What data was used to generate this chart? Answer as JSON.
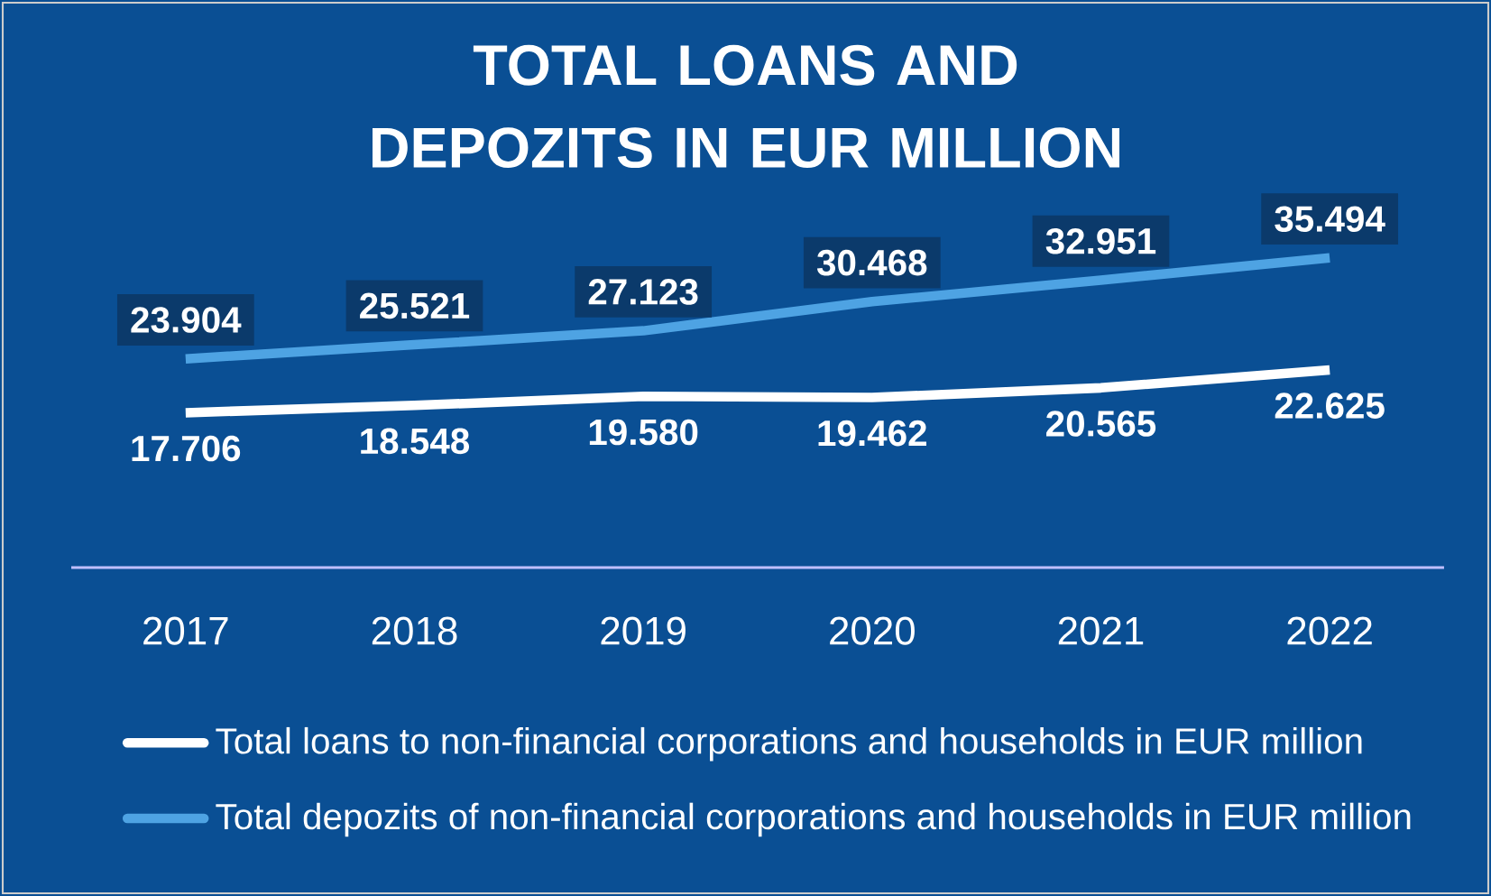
{
  "chart_data": {
    "type": "line",
    "title": "TOTAL LOANS AND DEPOZITS IN EUR MILLION",
    "categories": [
      "2017",
      "2018",
      "2019",
      "2020",
      "2021",
      "2022"
    ],
    "series": [
      {
        "name": "Total loans to non-financial corporations and households in EUR million",
        "color": "#ffffff",
        "values": [
          17.706,
          18.548,
          19.58,
          19.462,
          20.565,
          22.625
        ],
        "value_labels": [
          "17.706",
          "18.548",
          "19.580",
          "19.462",
          "20.565",
          "22.625"
        ]
      },
      {
        "name": "Total depozits of non-financial corporations and households in EUR million",
        "color": "#4ea3e3",
        "values": [
          23.904,
          25.521,
          27.123,
          30.468,
          32.951,
          35.494
        ],
        "value_labels": [
          "23.904",
          "25.521",
          "27.123",
          "30.468",
          "32.951",
          "35.494"
        ]
      }
    ],
    "tick_labels": "x",
    "grid": false,
    "legend": "bottom",
    "marker": "none",
    "line_style": "solid"
  }
}
